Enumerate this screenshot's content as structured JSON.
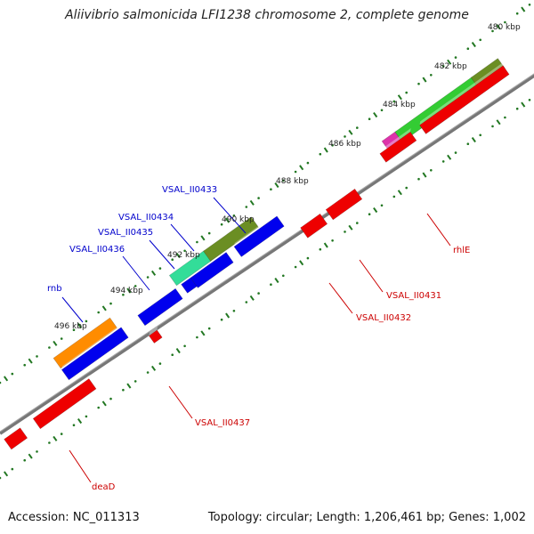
{
  "title": "Aliivibrio salmonicida LFI1238 chromosome 2, complete genome",
  "footer": {
    "accession": "Accession: NC_011313",
    "summary": "Topology: circular; Length: 1,206,461 bp; Genes: 1,002"
  },
  "ticks": [
    {
      "label": "480 kbp"
    },
    {
      "label": "482 kbp"
    },
    {
      "label": "484 kbp"
    },
    {
      "label": "486 kbp"
    },
    {
      "label": "488 kbp"
    },
    {
      "label": "490 kbp"
    },
    {
      "label": "492 kbp"
    },
    {
      "label": "494 kbp"
    },
    {
      "label": "496 kbp"
    }
  ],
  "genes": [
    {
      "name": "VSAL_II0433",
      "color": "#0000cc"
    },
    {
      "name": "VSAL_II0434",
      "color": "#0000cc"
    },
    {
      "name": "VSAL_II0435",
      "color": "#0000cc"
    },
    {
      "name": "VSAL_II0436",
      "color": "#0000cc"
    },
    {
      "name": "rnb",
      "color": "#0000cc"
    },
    {
      "name": "rhlE",
      "color": "#cc0000"
    },
    {
      "name": "VSAL_II0431",
      "color": "#cc0000"
    },
    {
      "name": "VSAL_II0432",
      "color": "#cc0000"
    },
    {
      "name": "VSAL_II0437",
      "color": "#cc0000"
    },
    {
      "name": "deaD",
      "color": "#cc0000"
    }
  ],
  "colors": {
    "backbone": "#777777",
    "forward_gene": "#0000ee",
    "reverse_gene": "#ee0000",
    "orange": "#ff8c00",
    "olive": "#6b8e23",
    "aquamarine": "#33dd99",
    "green": "#33cc33",
    "magenta": "#dd33aa",
    "tick": "#227722"
  }
}
